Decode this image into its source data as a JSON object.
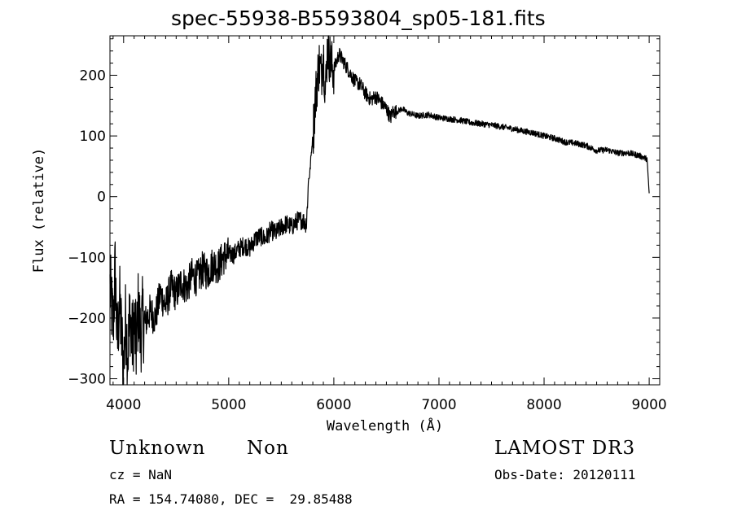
{
  "title": "spec-55938-B5593804_sp05-181.fits",
  "footer": {
    "class_label": "Unknown",
    "subclass_label": "Non",
    "survey": "LAMOST DR3",
    "cz": "cz = NaN",
    "obs_date": "Obs-Date: 20120111",
    "coords": "RA = 154.74080, DEC =  29.85488"
  },
  "chart_data": {
    "type": "line",
    "title": "spec-55938-B5593804_sp05-181.fits",
    "xlabel": "Wavelength (Å)",
    "ylabel": "Flux (relative)",
    "xlim": [
      3870,
      9100
    ],
    "ylim": [
      -310,
      265
    ],
    "x_ticks": [
      4000,
      5000,
      6000,
      7000,
      8000,
      9000
    ],
    "y_ticks": [
      -300,
      -200,
      -100,
      0,
      100,
      200
    ],
    "x_tick_labels": [
      "4000",
      "5000",
      "6000",
      "7000",
      "8000",
      "9000"
    ],
    "y_tick_labels": [
      "-300",
      "-200",
      "-100",
      "0",
      "100",
      "200"
    ],
    "grid": false,
    "series": [
      {
        "x": [
          3870,
          3900,
          3920,
          3940,
          3960,
          3980,
          4000,
          4020,
          4040,
          4060,
          4080,
          4100,
          4120,
          4140,
          4160,
          4180,
          4200,
          4250,
          4300,
          4350,
          4400,
          4450,
          4500,
          4550,
          4600,
          4650,
          4700,
          4750,
          4800,
          4850,
          4900,
          4950,
          5000,
          5050,
          5100,
          5150,
          5200,
          5250,
          5300,
          5350,
          5400,
          5450,
          5500,
          5550,
          5600,
          5650,
          5700,
          5740,
          5760,
          5770,
          5780,
          5800,
          5820,
          5840,
          5860,
          5880,
          5900,
          5920,
          5940,
          5960,
          5980,
          6000,
          6050,
          6100,
          6150,
          6200,
          6250,
          6300,
          6350,
          6400,
          6450,
          6500,
          6540,
          6560,
          6600,
          6650,
          6700,
          6800,
          6900,
          7000,
          7100,
          7200,
          7300,
          7400,
          7500,
          7600,
          7700,
          7800,
          7900,
          8000,
          8100,
          8200,
          8300,
          8400,
          8450,
          8500,
          8600,
          8700,
          8800,
          8900,
          8980,
          9000
        ],
        "y": [
          -150,
          -210,
          -120,
          -250,
          -170,
          -230,
          -280,
          -200,
          -260,
          -190,
          -240,
          -210,
          -250,
          -180,
          -230,
          -200,
          -210,
          -190,
          -200,
          -160,
          -180,
          -150,
          -160,
          -140,
          -150,
          -130,
          -135,
          -120,
          -125,
          -110,
          -115,
          -100,
          -95,
          -95,
          -85,
          -80,
          -85,
          -70,
          -65,
          -70,
          -55,
          -60,
          -50,
          -45,
          -50,
          -40,
          -38,
          -45,
          30,
          35,
          60,
          100,
          150,
          190,
          220,
          200,
          240,
          170,
          250,
          230,
          215,
          210,
          235,
          220,
          205,
          190,
          185,
          170,
          160,
          165,
          155,
          145,
          130,
          140,
          140,
          145,
          138,
          133,
          135,
          130,
          128,
          126,
          122,
          120,
          118,
          115,
          112,
          108,
          105,
          100,
          96,
          90,
          88,
          84,
          80,
          76,
          77,
          72,
          72,
          68,
          62,
          5
        ]
      }
    ]
  }
}
